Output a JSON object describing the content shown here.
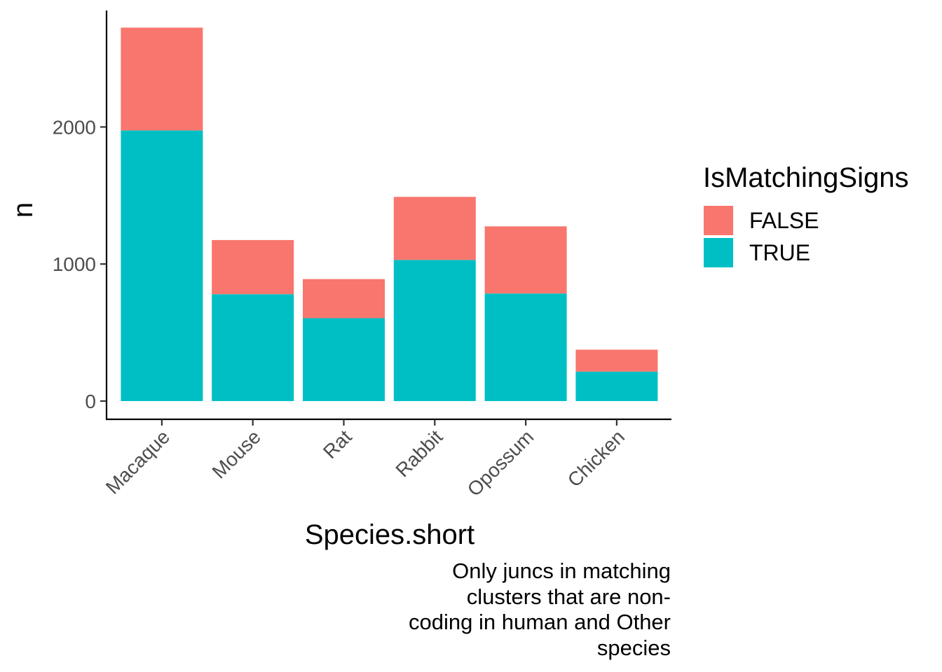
{
  "chart_data": {
    "type": "bar",
    "stacked": true,
    "categories": [
      "Macaque",
      "Mouse",
      "Rat",
      "Rabbit",
      "Opossum",
      "Chicken"
    ],
    "series": [
      {
        "name": "FALSE",
        "color": "#F8766D",
        "values": [
          750,
          395,
          285,
          460,
          490,
          160
        ]
      },
      {
        "name": "TRUE",
        "color": "#00BFC4",
        "values": [
          1975,
          780,
          605,
          1030,
          785,
          215
        ]
      }
    ],
    "xlabel": "Species.short",
    "ylabel": "n",
    "ylim": [
      -133,
      2850
    ],
    "yticks": [
      0,
      1000,
      2000
    ],
    "ytick_labels": [
      "0",
      "1000",
      "2000"
    ],
    "grid": false,
    "legend": {
      "title": "IsMatchingSigns",
      "placement": "right",
      "entries": [
        "FALSE",
        "TRUE"
      ]
    },
    "caption_lines": [
      "Only juncs in matching",
      "clusters that are non-",
      "coding in human and Other",
      "species"
    ]
  }
}
